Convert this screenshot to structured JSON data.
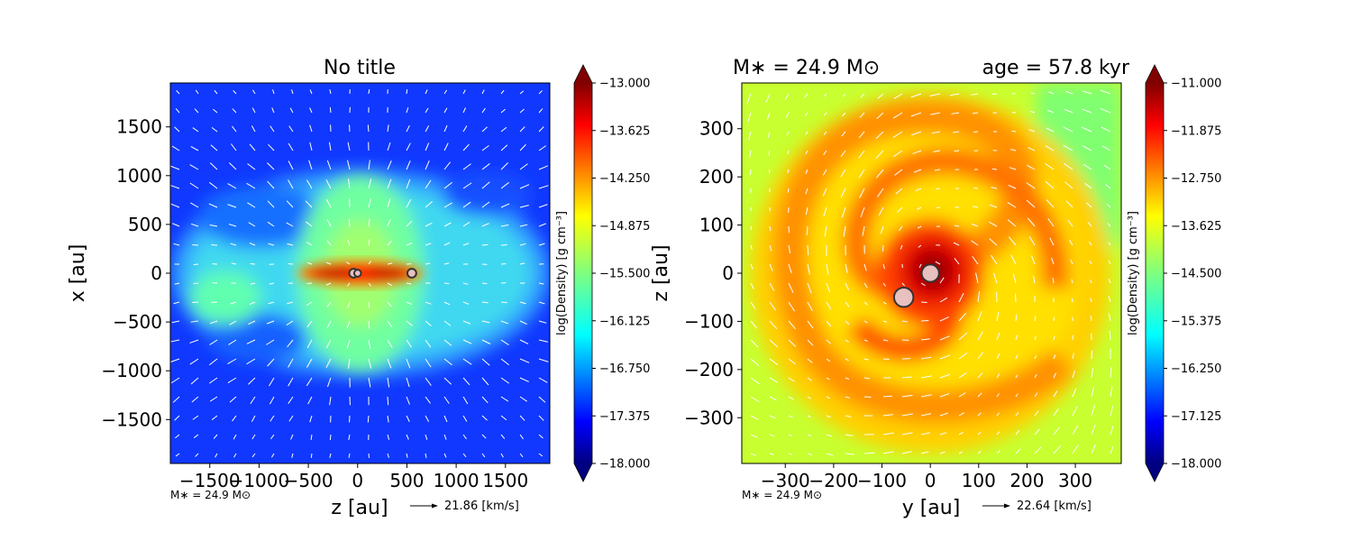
{
  "chart_data": [
    {
      "type": "heatmap",
      "title": "No title",
      "xlabel": "z [au]",
      "ylabel": "x [au]",
      "xlim": [
        -1900,
        1950
      ],
      "ylim": [
        -1950,
        1950
      ],
      "xticks": [
        -1500,
        -1000,
        -500,
        0,
        500,
        1000,
        1500
      ],
      "xtick_labels": [
        "−1500",
        "−1000",
        "−500",
        "0",
        "500",
        "1000",
        "1500"
      ],
      "yticks": [
        -1500,
        -1000,
        -500,
        0,
        500,
        1000,
        1500
      ],
      "ytick_labels": [
        "−1500",
        "−1000",
        "−500",
        "0",
        "500",
        "1000",
        "1500"
      ],
      "colorbar": {
        "label": "log(Density) [g cm⁻³]",
        "range": [
          -18.0,
          -13.0
        ],
        "ticks": [
          -13.0,
          -13.625,
          -14.25,
          -14.875,
          -15.5,
          -16.125,
          -16.75,
          -17.375,
          -18.0
        ],
        "tick_labels": [
          "−13.000",
          "−13.625",
          "−14.250",
          "−14.875",
          "−15.500",
          "−16.125",
          "−16.750",
          "−17.375",
          "−18.000"
        ]
      },
      "sinks": [
        {
          "x": -40,
          "y": 0,
          "r": 45
        },
        {
          "x": 0,
          "y": 0,
          "r": 35
        },
        {
          "x": 550,
          "y": 0,
          "r": 45
        }
      ],
      "mass_label": "M∗ = 24.9 M⊙",
      "vector_key": "21.86 [km/s]"
    },
    {
      "type": "heatmap",
      "title_left": "M∗ = 24.9 M⊙",
      "title_right": "age = 57.8 kyr",
      "xlabel": "y [au]",
      "ylabel": "z [au]",
      "xlim": [
        -390,
        395
      ],
      "ylim": [
        -395,
        395
      ],
      "xticks": [
        -300,
        -200,
        -100,
        0,
        100,
        200,
        300
      ],
      "xtick_labels": [
        "−300",
        "−200",
        "−100",
        "0",
        "100",
        "200",
        "300"
      ],
      "yticks": [
        -300,
        -200,
        -100,
        0,
        100,
        200,
        300
      ],
      "ytick_labels": [
        "−300",
        "−200",
        "−100",
        "0",
        "100",
        "200",
        "300"
      ],
      "colorbar": {
        "label": "log(Density) [g cm⁻³]",
        "range": [
          -18.0,
          -11.0
        ],
        "ticks": [
          -11.0,
          -11.875,
          -12.75,
          -13.625,
          -14.5,
          -15.375,
          -16.25,
          -17.125,
          -18.0
        ],
        "tick_labels": [
          "−11.000",
          "−11.875",
          "−12.750",
          "−13.625",
          "−14.500",
          "−15.375",
          "−16.250",
          "−17.125",
          "−18.000"
        ]
      },
      "sinks": [
        {
          "x": 0,
          "y": 0,
          "r": 18
        },
        {
          "x": -55,
          "y": -50,
          "r": 20
        }
      ],
      "mass_label": "M∗ = 24.9 M⊙",
      "vector_key": "22.64 [km/s]"
    }
  ]
}
